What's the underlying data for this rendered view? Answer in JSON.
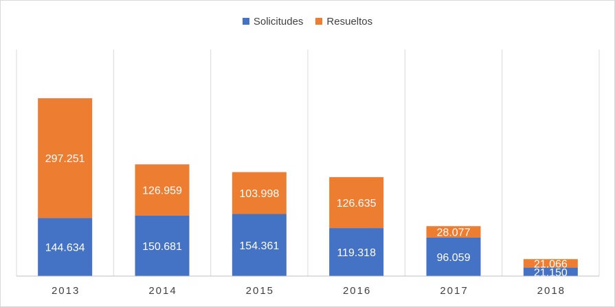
{
  "chart_data": {
    "type": "bar",
    "stacked": true,
    "categories": [
      "2013",
      "2014",
      "2015",
      "2016",
      "2017",
      "2018"
    ],
    "series": [
      {
        "name": "Solicitudes",
        "values": [
          144634,
          150681,
          154361,
          119318,
          96059,
          21150
        ],
        "labels": [
          "144.634",
          "150.681",
          "154.361",
          "119.318",
          "96.059",
          "21.150"
        ],
        "color": "#4472c4"
      },
      {
        "name": "Resueltos",
        "values": [
          297251,
          126959,
          103998,
          126635,
          28077,
          21066
        ],
        "labels": [
          "297.251",
          "126.959",
          "103.998",
          "126.635",
          "28.077",
          "21.066"
        ],
        "color": "#ed7d31"
      }
    ],
    "title": "",
    "xlabel": "",
    "ylabel": "",
    "ylim": [
      0,
      500000
    ],
    "grid": "vertical category separators",
    "legend_position": "top"
  }
}
